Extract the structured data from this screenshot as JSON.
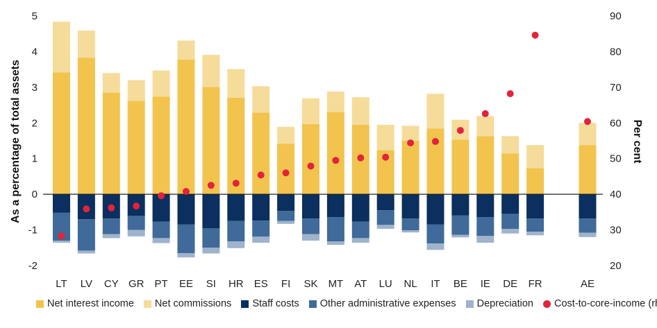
{
  "chart_data": {
    "type": "bar",
    "categories": [
      "LT",
      "LV",
      "CY",
      "GR",
      "PT",
      "EE",
      "SI",
      "HR",
      "ES",
      "FI",
      "SK",
      "MT",
      "AT",
      "LU",
      "NL",
      "IT",
      "BE",
      "IE",
      "DE",
      "FR",
      "AE"
    ],
    "series": [
      {
        "name": "Net interest income",
        "axis": "left",
        "color": "#f2c44e",
        "values": [
          3.42,
          3.83,
          2.85,
          2.62,
          2.74,
          3.78,
          3.01,
          2.71,
          2.29,
          1.42,
          1.97,
          2.31,
          1.95,
          1.24,
          1.5,
          1.84,
          1.53,
          1.63,
          1.14,
          0.73,
          1.38
        ]
      },
      {
        "name": "Net commissions",
        "axis": "left",
        "color": "#f6dc9a",
        "values": [
          1.42,
          0.76,
          0.55,
          0.58,
          0.73,
          0.53,
          0.9,
          0.8,
          0.74,
          0.47,
          0.72,
          0.57,
          0.77,
          0.71,
          0.42,
          0.98,
          0.56,
          0.56,
          0.49,
          0.65,
          0.62
        ]
      },
      {
        "name": "Staff costs",
        "axis": "left",
        "color": "#0b2f5e",
        "values": [
          -0.52,
          -0.7,
          -0.68,
          -0.6,
          -0.77,
          -0.85,
          -0.95,
          -0.75,
          -0.74,
          -0.47,
          -0.68,
          -0.64,
          -0.77,
          -0.45,
          -0.68,
          -0.85,
          -0.59,
          -0.64,
          -0.55,
          -0.68,
          -0.68
        ]
      },
      {
        "name": "Other administrative expenses",
        "axis": "left",
        "color": "#3f6a99",
        "values": [
          -0.78,
          -0.88,
          -0.44,
          -0.4,
          -0.46,
          -0.8,
          -0.55,
          -0.57,
          -0.45,
          -0.28,
          -0.44,
          -0.68,
          -0.46,
          -0.41,
          -0.33,
          -0.53,
          -0.55,
          -0.53,
          -0.42,
          -0.37,
          -0.4
        ]
      },
      {
        "name": "Depreciation",
        "axis": "left",
        "color": "#9fb3cc",
        "values": [
          -0.06,
          -0.08,
          -0.11,
          -0.18,
          -0.14,
          -0.12,
          -0.16,
          -0.19,
          -0.17,
          -0.08,
          -0.18,
          -0.1,
          -0.13,
          -0.11,
          -0.06,
          -0.18,
          -0.07,
          -0.19,
          -0.13,
          -0.1,
          -0.12
        ]
      },
      {
        "name": "Cost-to-core-income (rhs)",
        "axis": "right",
        "type": "scatter",
        "color": "#e2233b",
        "values": [
          28.3,
          35.9,
          36.2,
          36.7,
          39.6,
          40.8,
          42.5,
          43.1,
          45.4,
          46.0,
          47.9,
          49.5,
          50.2,
          50.4,
          54.4,
          54.8,
          57.9,
          62.6,
          68.2,
          84.6,
          60.4
        ]
      }
    ],
    "ylabel": "As a percentage of total assets",
    "ylabel_right": "Per cent",
    "ylim": [
      -2,
      5
    ],
    "yticks": [
      -2,
      -1,
      0,
      1,
      2,
      3,
      4,
      5
    ],
    "ylim_right": [
      20,
      90
    ],
    "yticks_right": [
      20,
      30,
      40,
      50,
      60,
      70,
      80,
      90
    ],
    "grid": false,
    "legend": "bottom"
  }
}
